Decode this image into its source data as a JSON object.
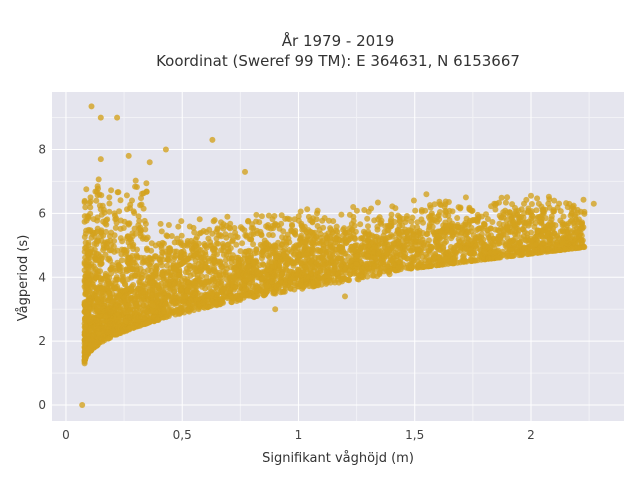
{
  "chart_data": {
    "type": "scatter",
    "title": "År 1979 - 2019",
    "subtitle": "Koordinat (Sweref 99 TM): E 364631, N 6153667",
    "xlabel": "Signifikant våghöjd (m)",
    "ylabel": "Vågperiod (s)",
    "xlim": [
      -0.06,
      2.4
    ],
    "ylim": [
      -0.5,
      9.8
    ],
    "x_ticks": [
      0,
      0.5,
      1,
      1.5,
      2
    ],
    "x_tick_labels": [
      "0",
      "0,5",
      "1",
      "1,5",
      "2"
    ],
    "y_ticks": [
      0,
      2,
      4,
      6,
      8
    ],
    "y_tick_labels": [
      "0",
      "2",
      "4",
      "6",
      "8"
    ],
    "grid": true,
    "marker_color": "#D4A21C",
    "plot_background": "#E5E5EE",
    "series": [
      {
        "points": [
          [
            0.07,
            0.0
          ],
          [
            0.11,
            9.35
          ],
          [
            0.15,
            9.0
          ],
          [
            0.22,
            9.0
          ],
          [
            0.08,
            1.4
          ],
          [
            0.12,
            2.2
          ],
          [
            0.15,
            7.7
          ],
          [
            0.27,
            7.8
          ],
          [
            0.36,
            7.6
          ],
          [
            0.43,
            8.0
          ],
          [
            0.63,
            8.3
          ],
          [
            0.77,
            7.3
          ],
          [
            1.55,
            6.6
          ],
          [
            1.72,
            6.5
          ],
          [
            1.85,
            6.3
          ],
          [
            1.97,
            6.3
          ],
          [
            2.0,
            6.55
          ],
          [
            2.1,
            6.4
          ],
          [
            2.18,
            6.2
          ],
          [
            2.27,
            6.3
          ],
          [
            1.95,
            5.9
          ],
          [
            2.05,
            6.1
          ],
          [
            1.2,
            3.4
          ],
          [
            0.9,
            3.0
          ]
        ]
      }
    ]
  }
}
